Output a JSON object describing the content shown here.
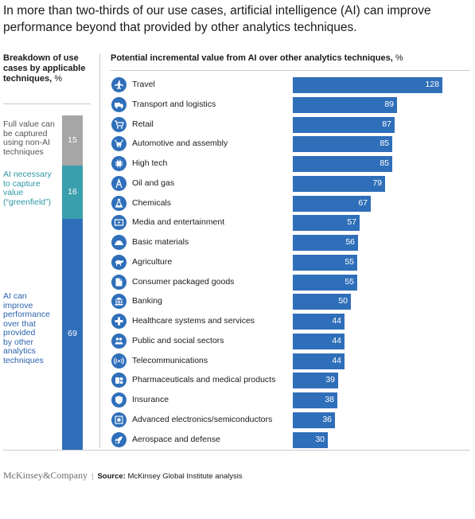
{
  "title": "In more than two-thirds of our use cases, artificial intelligence (AI) can improve performance beyond that provided by other analytics techniques.",
  "left_panel": {
    "heading": "Breakdown of use cases by applicable techniques,",
    "heading_unit": "%",
    "segments": [
      {
        "label_lines": [
          "Full value can",
          "be captured",
          "using non-AI",
          "techniques"
        ],
        "value": 15,
        "color": "#a6a6a6",
        "label_color": "#555555"
      },
      {
        "label_lines": [
          "AI necessary",
          "to capture",
          "value",
          "(“greenfield”)"
        ],
        "value": 16,
        "color": "#3a9fac",
        "label_color": "#2e97a4"
      },
      {
        "label_lines": [
          "AI can",
          "improve",
          "performance",
          "over that",
          "provided",
          "by other",
          "analytics",
          "techniques"
        ],
        "value": 69,
        "color": "#2f6fba",
        "label_color": "#2a63ad"
      }
    ]
  },
  "right_panel": {
    "heading": "Potential incremental value from AI over other analytics techniques,",
    "heading_unit": "%"
  },
  "chart_data": {
    "type": "bar",
    "orientation": "horizontal",
    "title": "Potential incremental value from AI over other analytics techniques, %",
    "bar_color": "#2f6fba",
    "categories": [
      "Travel",
      "Transport and logistics",
      "Retail",
      "Automotive and assembly",
      "High tech",
      "Oil and gas",
      "Chemicals",
      "Media and entertainment",
      "Basic materials",
      "Agriculture",
      "Consumer packaged goods",
      "Banking",
      "Healthcare systems and services",
      "Public and social sectors",
      "Telecommunications",
      "Pharmaceuticals and medical products",
      "Insurance",
      "Advanced electronics/semiconductors",
      "Aerospace and defense"
    ],
    "values": [
      128,
      89,
      87,
      85,
      85,
      79,
      67,
      57,
      56,
      55,
      55,
      50,
      44,
      44,
      44,
      39,
      38,
      36,
      30
    ],
    "icons": [
      "airplane-icon",
      "truck-icon",
      "shopping-cart-icon",
      "car-assembly-icon",
      "chip-icon",
      "oil-derrick-icon",
      "flask-icon",
      "film-icon",
      "hardhat-icon",
      "cow-icon",
      "package-icon",
      "bank-icon",
      "medical-cross-icon",
      "people-icon",
      "signal-icon",
      "pills-icon",
      "shield-icon",
      "circuit-icon",
      "rocket-icon"
    ],
    "xlim": [
      0,
      128
    ],
    "grid": false,
    "legend": "none"
  },
  "footer": {
    "logo": "McKinsey&Company",
    "separator": "|",
    "source_label": "Source:",
    "source_text": "McKinsey Global Institute analysis"
  }
}
